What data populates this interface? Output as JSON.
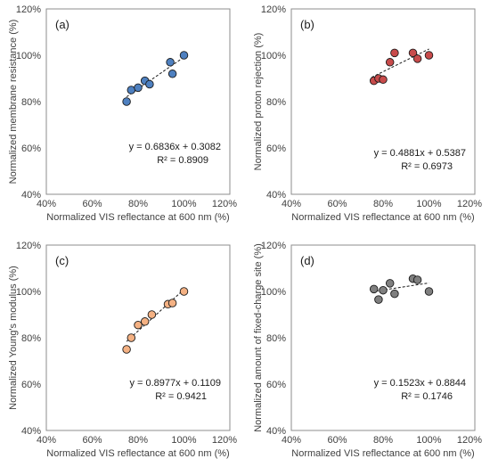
{
  "chart_data": [
    {
      "type": "scatter",
      "panel_label": "(a)",
      "xlabel": "Normalized VIS reflectance at 600 nm (%)",
      "ylabel": "Normalized membrane resistance (%)",
      "xlim": [
        40,
        120
      ],
      "ylim": [
        40,
        120
      ],
      "xticks": [
        "40%",
        "60%",
        "80%",
        "100%",
        "120%"
      ],
      "yticks": [
        "40%",
        "60%",
        "80%",
        "100%",
        "120%"
      ],
      "color": "#4e80c0",
      "points": [
        [
          75,
          80
        ],
        [
          77,
          85
        ],
        [
          80,
          86
        ],
        [
          83,
          89
        ],
        [
          85,
          87.5
        ],
        [
          94,
          97
        ],
        [
          95,
          92
        ],
        [
          100,
          100
        ]
      ],
      "trend": {
        "slope": 0.6836,
        "intercept": 0.3082,
        "x_range": [
          75,
          100
        ]
      },
      "equation": "y = 0.6836x + 0.3082",
      "r2": "R² = 0.8909"
    },
    {
      "type": "scatter",
      "panel_label": "(b)",
      "xlabel": "Normalized VIS reflectance at 600 nm (%)",
      "ylabel": "Normalized proton rejection (%)",
      "xlim": [
        40,
        120
      ],
      "ylim": [
        40,
        120
      ],
      "xticks": [
        "40%",
        "60%",
        "80%",
        "100%",
        "120%"
      ],
      "yticks": [
        "40%",
        "60%",
        "80%",
        "100%",
        "120%"
      ],
      "color": "#c84b4b",
      "points": [
        [
          76,
          89
        ],
        [
          78,
          90
        ],
        [
          80,
          89.5
        ],
        [
          83,
          97
        ],
        [
          85,
          101
        ],
        [
          93,
          101
        ],
        [
          95,
          98.5
        ],
        [
          100,
          100
        ]
      ],
      "trend": {
        "slope": 0.4881,
        "intercept": 0.5387,
        "x_range": [
          75,
          100
        ]
      },
      "equation": "y = 0.4881x + 0.5387",
      "r2": "R² = 0.6973"
    },
    {
      "type": "scatter",
      "panel_label": "(c)",
      "xlabel": "Normalized VIS reflectance at 600 nm (%)",
      "ylabel": "Normalized Young's modulus (%)",
      "xlim": [
        40,
        120
      ],
      "ylim": [
        40,
        120
      ],
      "xticks": [
        "40%",
        "60%",
        "80%",
        "100%",
        "120%"
      ],
      "yticks": [
        "40%",
        "60%",
        "80%",
        "100%",
        "120%"
      ],
      "color": "#f4b183",
      "points": [
        [
          75,
          75
        ],
        [
          77,
          80
        ],
        [
          80,
          85.5
        ],
        [
          83,
          87
        ],
        [
          86,
          90
        ],
        [
          93,
          94.5
        ],
        [
          95,
          95
        ],
        [
          100,
          100
        ]
      ],
      "trend": {
        "slope": 0.8977,
        "intercept": 0.1109,
        "x_range": [
          75,
          100
        ]
      },
      "equation": "y = 0.8977x + 0.1109",
      "r2": "R² = 0.9421"
    },
    {
      "type": "scatter",
      "panel_label": "(d)",
      "xlabel": "Normalized VIS reflectance at 600 nm (%)",
      "ylabel": "Normalized amount of fixed-charge site (%)",
      "xlim": [
        40,
        120
      ],
      "ylim": [
        40,
        120
      ],
      "xticks": [
        "40%",
        "60%",
        "80%",
        "100%",
        "120%"
      ],
      "yticks": [
        "40%",
        "60%",
        "80%",
        "100%",
        "120%"
      ],
      "color": "#7f7f7f",
      "points": [
        [
          76,
          101
        ],
        [
          78,
          96.5
        ],
        [
          80,
          100.5
        ],
        [
          83,
          103.5
        ],
        [
          85,
          99
        ],
        [
          93,
          105.5
        ],
        [
          95,
          105
        ],
        [
          100,
          100
        ]
      ],
      "trend": {
        "slope": 0.1523,
        "intercept": 0.8844,
        "x_range": [
          75,
          100
        ]
      },
      "equation": "y = 0.1523x + 0.8844",
      "r2": "R² = 0.1746"
    }
  ]
}
